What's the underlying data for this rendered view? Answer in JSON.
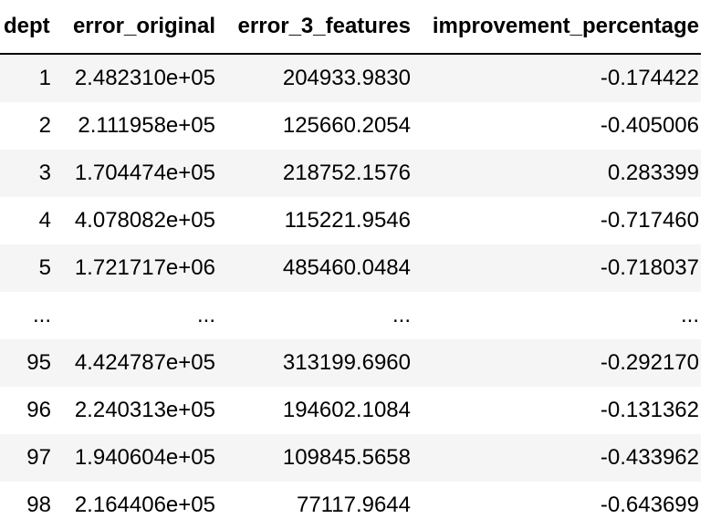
{
  "table": {
    "columns": [
      "dept",
      "error_original",
      "error_3_features",
      "improvement_percentage"
    ],
    "rows": [
      {
        "dept": "1",
        "error_original": "2.482310e+05",
        "error_3_features": "204933.9830",
        "improvement_percentage": "-0.174422"
      },
      {
        "dept": "2",
        "error_original": "2.111958e+05",
        "error_3_features": "125660.2054",
        "improvement_percentage": "-0.405006"
      },
      {
        "dept": "3",
        "error_original": "1.704474e+05",
        "error_3_features": "218752.1576",
        "improvement_percentage": "0.283399"
      },
      {
        "dept": "4",
        "error_original": "4.078082e+05",
        "error_3_features": "115221.9546",
        "improvement_percentage": "-0.717460"
      },
      {
        "dept": "5",
        "error_original": "1.721717e+06",
        "error_3_features": "485460.0484",
        "improvement_percentage": "-0.718037"
      },
      {
        "dept": "...",
        "error_original": "...",
        "error_3_features": "...",
        "improvement_percentage": "..."
      },
      {
        "dept": "95",
        "error_original": "4.424787e+05",
        "error_3_features": "313199.6960",
        "improvement_percentage": "-0.292170"
      },
      {
        "dept": "96",
        "error_original": "2.240313e+05",
        "error_3_features": "194602.1084",
        "improvement_percentage": "-0.131362"
      },
      {
        "dept": "97",
        "error_original": "1.940604e+05",
        "error_3_features": "109845.5658",
        "improvement_percentage": "-0.433962"
      },
      {
        "dept": "98",
        "error_original": "2.164406e+05",
        "error_3_features": "77117.9644",
        "improvement_percentage": "-0.643699"
      }
    ]
  }
}
